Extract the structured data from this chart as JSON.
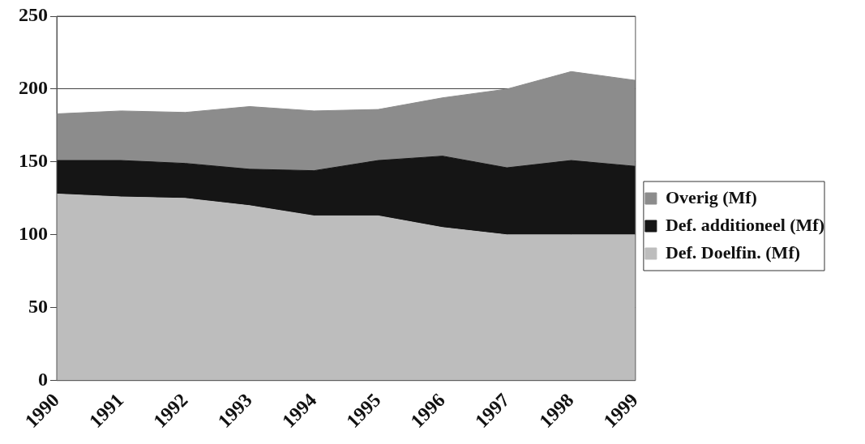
{
  "chart_data": {
    "type": "area",
    "stacked": true,
    "categories": [
      "1990",
      "1991",
      "1992",
      "1993",
      "1994",
      "1995",
      "1996",
      "1997",
      "1998",
      "1999"
    ],
    "series": [
      {
        "name": "Def. Doelfin. (Mf)",
        "color": "#bdbdbd",
        "values": [
          128,
          126,
          125,
          120,
          113,
          113,
          105,
          100,
          100,
          100
        ]
      },
      {
        "name": "Def. additioneel (Mf)",
        "color": "#151515",
        "values": [
          23,
          25,
          24,
          25,
          31,
          38,
          49,
          46,
          51,
          47
        ]
      },
      {
        "name": "Overig (Mf)",
        "color": "#8c8c8c",
        "values": [
          32,
          34,
          35,
          43,
          41,
          35,
          40,
          54,
          61,
          59
        ]
      }
    ],
    "ylim": [
      0,
      250
    ],
    "yticks": [
      0,
      50,
      100,
      150,
      200,
      250
    ],
    "grid": "y",
    "legend": "right"
  }
}
